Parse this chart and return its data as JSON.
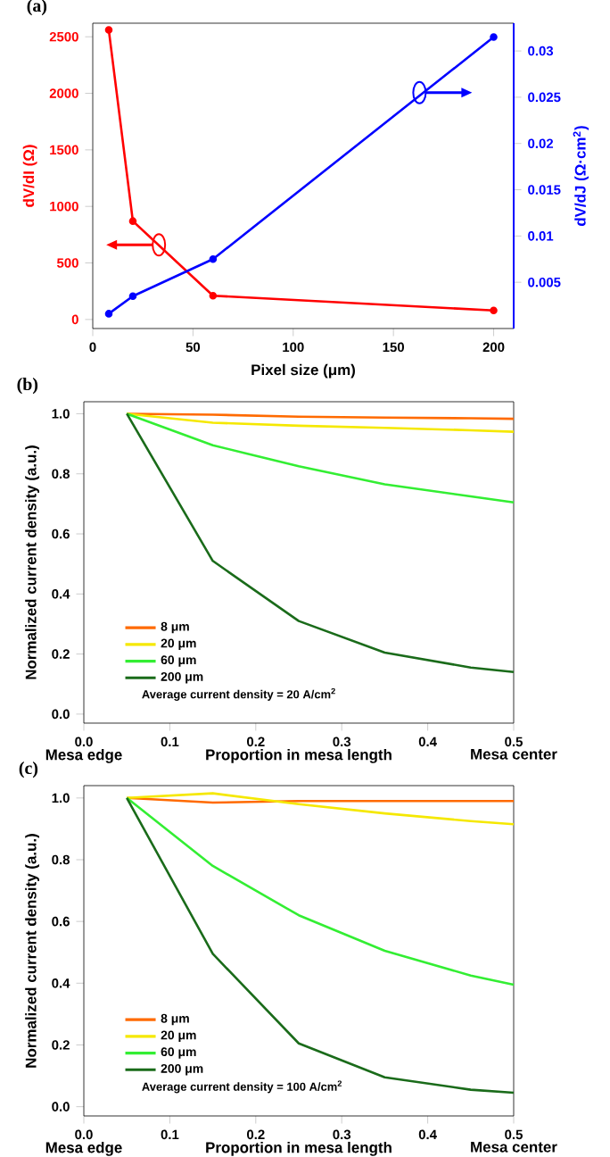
{
  "chart_data": [
    {
      "type": "line",
      "title": "(a)",
      "xlabel": "Pixel size (μm)",
      "ylabel": "dV/dI (Ω)",
      "y2label": "dV/dJ (Ω·cm$^{2}$)",
      "marker": "circle",
      "x": [
        8,
        20,
        60,
        200
      ],
      "series": [
        {
          "color": "#ff0000",
          "values": [
            2560,
            870,
            210,
            80
          ]
        },
        {
          "color": "#0000ff",
          "axis": "y2",
          "values": [
            0.0016,
            0.0035,
            0.0075,
            0.0315
          ]
        }
      ],
      "xlim": [
        0,
        210
      ],
      "xticks": [
        0,
        50,
        100,
        150,
        200
      ],
      "ylim": [
        -80,
        2620
      ],
      "yticks": [
        0,
        500,
        1000,
        1500,
        2000,
        2500
      ],
      "y2lim": [
        0,
        0.033
      ],
      "y2ticks": [
        0.005,
        0.01,
        0.015,
        0.02,
        0.025,
        0.03
      ]
    },
    {
      "type": "line",
      "title": "(b)",
      "xlabel": "Proportion in mesa length",
      "ylabel": "Normalized current density (a.u.)",
      "legend": "bottom left",
      "annotations": [
        "Mesa edge",
        "Mesa center",
        "Average current density = 20 A/cm$^{2}$"
      ],
      "x": [
        0.05,
        0.15,
        0.25,
        0.35,
        0.45,
        0.5
      ],
      "series": [
        {
          "name": "8 μm",
          "color": "#ff6a00",
          "values": [
            1.0,
            0.997,
            0.99,
            0.987,
            0.985,
            0.983
          ]
        },
        {
          "name": "20 μm",
          "color": "#f5e800",
          "values": [
            1.0,
            0.97,
            0.96,
            0.953,
            0.945,
            0.94
          ]
        },
        {
          "name": "60 μm",
          "color": "#33ee33",
          "values": [
            1.0,
            0.895,
            0.825,
            0.765,
            0.725,
            0.705
          ]
        },
        {
          "name": "200 μm",
          "color": "#1a6b1a",
          "values": [
            1.0,
            0.51,
            0.31,
            0.205,
            0.155,
            0.14
          ]
        }
      ],
      "xlim": [
        0,
        0.5
      ],
      "xticks": [
        {
          "value": 0,
          "label": "0.0"
        },
        {
          "value": 0.1,
          "label": "0.1"
        },
        {
          "value": 0.2,
          "label": "0.2"
        },
        {
          "value": 0.3,
          "label": "0.3"
        },
        {
          "value": 0.4,
          "label": "0.4"
        },
        {
          "value": 0.5,
          "label": "0.5"
        }
      ],
      "ylim": [
        -0.03,
        1.04
      ],
      "yticks": [
        {
          "value": 0,
          "label": "0.0"
        },
        {
          "value": 0.2,
          "label": "0.2"
        },
        {
          "value": 0.4,
          "label": "0.4"
        },
        {
          "value": 0.6,
          "label": "0.6"
        },
        {
          "value": 0.8,
          "label": "0.8"
        },
        {
          "value": 1,
          "label": "1.0"
        }
      ]
    },
    {
      "type": "line",
      "title": "(c)",
      "xlabel": "Proportion in mesa length",
      "ylabel": "Normalized current density (a.u.)",
      "legend": "bottom left",
      "annotations": [
        "Mesa edge",
        "Mesa center",
        "Average current density = 100 A/cm$^{2}$"
      ],
      "x": [
        0.05,
        0.15,
        0.25,
        0.35,
        0.45,
        0.5
      ],
      "series": [
        {
          "name": "8 μm",
          "color": "#ff6a00",
          "values": [
            1.0,
            0.985,
            0.99,
            0.99,
            0.99,
            0.99
          ]
        },
        {
          "name": "20 μm",
          "color": "#f5e800",
          "values": [
            1.0,
            1.015,
            0.98,
            0.95,
            0.925,
            0.915
          ]
        },
        {
          "name": "60 μm",
          "color": "#33ee33",
          "values": [
            1.0,
            0.78,
            0.62,
            0.505,
            0.425,
            0.395
          ]
        },
        {
          "name": "200 μm",
          "color": "#1a6b1a",
          "values": [
            1.0,
            0.495,
            0.205,
            0.095,
            0.055,
            0.045
          ]
        }
      ],
      "xlim": [
        0,
        0.5
      ],
      "xticks": [
        {
          "value": 0,
          "label": "0.0"
        },
        {
          "value": 0.1,
          "label": "0.1"
        },
        {
          "value": 0.2,
          "label": "0.2"
        },
        {
          "value": 0.3,
          "label": "0.3"
        },
        {
          "value": 0.4,
          "label": "0.4"
        },
        {
          "value": 0.5,
          "label": "0.5"
        }
      ],
      "ylim": [
        -0.03,
        1.04
      ],
      "yticks": [
        {
          "value": 0,
          "label": "0.0"
        },
        {
          "value": 0.2,
          "label": "0.2"
        },
        {
          "value": 0.4,
          "label": "0.4"
        },
        {
          "value": 0.6,
          "label": "0.6"
        },
        {
          "value": 0.8,
          "label": "0.8"
        },
        {
          "value": 1,
          "label": "1.0"
        }
      ]
    }
  ]
}
